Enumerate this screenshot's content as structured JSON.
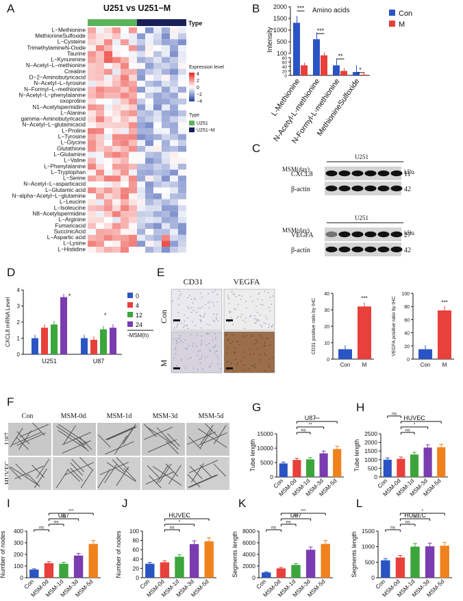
{
  "panels": {
    "A": "A",
    "B": "B",
    "C": "C",
    "D": "D",
    "E": "E",
    "F": "F",
    "G": "G",
    "H": "H",
    "I": "I",
    "J": "J",
    "K": "K",
    "L": "L"
  },
  "heatmap": {
    "title": "U251 vs U251−M",
    "type_label": "Type",
    "rows": [
      "L−Methionine",
      "MethionineSulfoxide",
      "L−Cysteine",
      "TrimethylamineN-Oxide",
      "Taurine",
      "L−Kynurenine",
      "N−Acetyl−L−methionine",
      "Creatine",
      "D−2−Aminobutyricacid",
      "N−Acetyl−L−tyrosine",
      "N−Formyl−L−methionine",
      "N−Acetyl−L−phenylalanine",
      "oxoproline",
      "N1−Acetylspermidine",
      "L−Alanine",
      "gamma−Aminobutyricacid",
      "N−Acetyl−L−glutamicacid",
      "L−Proline",
      "L−Tyrosine",
      "L−Glycine",
      "Glutathione",
      "L−Glutamine",
      "L−Valine",
      "L−Phenylalanine",
      "L−Tryptophan",
      "L−Serine",
      "N−Acetyl−L−asparticacid",
      "L−Glutamic acid",
      "N−alpha−Acetyl−L−glutamine",
      "L−Leucine",
      "L−Isoleucine",
      "N8−Acetylspermidine",
      "L−Arginine",
      "Fumaricacid",
      "SuccinicAcid",
      "L−Aspartic acid",
      "L−Lysine",
      "L−Histidine"
    ],
    "legend_expr_title": "Expression level",
    "legend_expr_ticks": [
      "4",
      "2",
      "0",
      "−2",
      "−4"
    ],
    "legend_type_title": "Type",
    "legend_type_items": [
      "U251",
      "U251−M"
    ],
    "colors": {
      "high": "#e8241c",
      "mid": "#ffffff",
      "low": "#1f3fa0",
      "u251": "#5bb35b",
      "u251m": "#1a1f5a"
    }
  },
  "panelB": {
    "title": "Amino acids",
    "ylabel": "Intensity",
    "y_ticks_upper": [
      "2000",
      "1500",
      "1000",
      "500",
      "100"
    ],
    "y_ticks_lower": [
      "80",
      "60",
      "40",
      "20",
      "0"
    ],
    "categories": [
      "L-Methionine",
      "N-Acetyl-L-methionine",
      "N-Formyl-L-methionine",
      "MethionineSulfoxide"
    ],
    "legend": [
      "Con",
      "M"
    ],
    "sig": [
      "***",
      "***",
      "**",
      "*"
    ],
    "colors": {
      "con": "#2a54c4",
      "m": "#e8403a"
    }
  },
  "panelC": {
    "cell": "U251",
    "msm_label": "MSM(day)",
    "days": [
      "0",
      "1",
      "2",
      "3",
      "4",
      "5"
    ],
    "kda": "kDa",
    "blot1": [
      {
        "name": "CXCL8",
        "size": "11"
      },
      {
        "name": "β-actin",
        "size": "42"
      }
    ],
    "blot2": [
      {
        "name": "VEGFA",
        "size": "27"
      },
      {
        "name": "β-actin",
        "size": "42"
      }
    ]
  },
  "panelD": {
    "ylabel": "CXCL8 mRNA Level",
    "y_ticks": [
      "4",
      "3",
      "2",
      "1",
      "0"
    ],
    "groups": [
      "U251",
      "U87"
    ],
    "legend": [
      "0",
      "4",
      "12",
      "24"
    ],
    "legend_unit": "-MSM(h)",
    "colors": [
      "#2a54c4",
      "#e8403a",
      "#3ca63c",
      "#7a3cb0"
    ]
  },
  "panelE": {
    "col_labels": [
      "CD31",
      "VEGFA"
    ],
    "row_labels": [
      "Con",
      "M"
    ],
    "chart1": {
      "ylabel": "CD31 positive ratio by IHC",
      "y_ticks": [
        "40",
        "30",
        "20",
        "10",
        "0"
      ],
      "categories": [
        "Con",
        "M"
      ],
      "sig": "***"
    },
    "chart2": {
      "ylabel": "VEGFA positive ratio by IHC",
      "y_ticks": [
        "100",
        "80",
        "60",
        "40",
        "20",
        "0"
      ],
      "categories": [
        "Con",
        "M"
      ],
      "sig": "***"
    }
  },
  "panelF": {
    "col_labels": [
      "Con",
      "MSM-0d",
      "MSM-1d",
      "MSM-3d",
      "MSM-5d"
    ],
    "row_labels": [
      "U87",
      "HUVEC"
    ]
  },
  "bar_categories": [
    "Con",
    "MSM-0d",
    "MSM-1d",
    "MSM-3d",
    "MSM-5d"
  ],
  "bar_colors": [
    "#2a54c4",
    "#e8403a",
    "#3ca63c",
    "#7a3cb0",
    "#f0821e"
  ],
  "chart_data": [
    {
      "panel": "B",
      "type": "bar",
      "title": "Amino acids",
      "ylabel": "Intensity",
      "categories": [
        "L-Methionine",
        "N-Acetyl-L-methionine",
        "N-Formyl-L-methionine",
        "MethionineSulfoxide"
      ],
      "series": [
        {
          "name": "Con",
          "values": [
            1350,
            680,
            45,
            15
          ]
        },
        {
          "name": "M",
          "values": [
            45,
            90,
            20,
            3
          ]
        }
      ]
    },
    {
      "panel": "D",
      "type": "bar",
      "ylabel": "CXCL8 mRNA Level",
      "categories": [
        "U251",
        "U87"
      ],
      "ylim": [
        0,
        4
      ],
      "series": [
        {
          "name": "0",
          "values": [
            1.0,
            1.0
          ]
        },
        {
          "name": "4",
          "values": [
            1.65,
            0.9
          ]
        },
        {
          "name": "12",
          "values": [
            1.85,
            1.55
          ]
        },
        {
          "name": "24",
          "values": [
            3.55,
            1.65
          ]
        }
      ]
    },
    {
      "panel": "E1",
      "type": "bar",
      "ylabel": "CD31 positive ratio by IHC",
      "categories": [
        "Con",
        "M"
      ],
      "values": [
        6,
        32
      ],
      "ylim": [
        0,
        40
      ]
    },
    {
      "panel": "E2",
      "type": "bar",
      "ylabel": "VEGFA positive ratio by IHC",
      "categories": [
        "Con",
        "M"
      ],
      "values": [
        15,
        74
      ],
      "ylim": [
        0,
        100
      ]
    },
    {
      "panel": "G",
      "type": "bar",
      "title": "U87",
      "ylabel": "Tube length",
      "categories": [
        "Con",
        "MSM-0d",
        "MSM-1d",
        "MSM-3d",
        "MSM-5d"
      ],
      "values": [
        4700,
        5900,
        6100,
        8200,
        9700
      ],
      "ylim": [
        0,
        15000
      ],
      "y_ticks": [
        "15000",
        "10000",
        "5000",
        "0"
      ],
      "sig": [
        {
          "from": 1,
          "to": 2,
          "t": "ns"
        },
        {
          "from": 1,
          "to": 3,
          "t": "**"
        },
        {
          "from": 1,
          "to": 4,
          "t": "***"
        }
      ]
    },
    {
      "panel": "H",
      "type": "bar",
      "title": "HUVEC",
      "ylabel": "Tube length",
      "categories": [
        "Con",
        "MSM-0d",
        "MSM-1d",
        "MSM-3d",
        "MSM-5d"
      ],
      "values": [
        1000,
        1050,
        1300,
        1700,
        1720
      ],
      "ylim": [
        0,
        2500
      ],
      "y_ticks": [
        "2500",
        "2000",
        "1500",
        "1000",
        "500",
        "0"
      ],
      "sig": [
        {
          "from": 1,
          "to": 2,
          "t": "ns"
        },
        {
          "from": 1,
          "to": 3,
          "t": "*"
        },
        {
          "from": 1,
          "to": 4,
          "t": "*"
        },
        {
          "from": 0,
          "to": 1,
          "t": "ns"
        }
      ]
    },
    {
      "panel": "I",
      "type": "bar",
      "title": "U87",
      "ylabel": "Number of nodes",
      "categories": [
        "Con",
        "MSM-0d",
        "MSM-1d",
        "MSM-3d",
        "MSM-5d"
      ],
      "values": [
        70,
        125,
        120,
        190,
        290
      ],
      "ylim": [
        0,
        400
      ],
      "y_ticks": [
        "400",
        "300",
        "200",
        "100",
        "0"
      ],
      "sig": [
        {
          "from": 0,
          "to": 1,
          "t": "ns"
        },
        {
          "from": 1,
          "to": 2,
          "t": "ns"
        },
        {
          "from": 1,
          "to": 3,
          "t": "ns"
        },
        {
          "from": 1,
          "to": 4,
          "t": "***"
        }
      ]
    },
    {
      "panel": "J",
      "type": "bar",
      "title": "HUVEC",
      "ylabel": "Number of nodes",
      "categories": [
        "Con",
        "MSM-0d",
        "MSM-1d",
        "MSM-3d",
        "MSM-5d"
      ],
      "values": [
        30,
        33,
        45,
        72,
        78
      ],
      "ylim": [
        0,
        100
      ],
      "y_ticks": [
        "100",
        "80",
        "60",
        "40",
        "20",
        "0"
      ],
      "sig": [
        {
          "from": 1,
          "to": 2,
          "t": "ns"
        },
        {
          "from": 1,
          "to": 3,
          "t": "*"
        },
        {
          "from": 1,
          "to": 4,
          "t": "*"
        }
      ]
    },
    {
      "panel": "K",
      "type": "bar",
      "title": "U87",
      "ylabel": "Segments length",
      "categories": [
        "Con",
        "MSM-0d",
        "MSM-1d",
        "MSM-3d",
        "MSM-5d"
      ],
      "values": [
        900,
        1600,
        2200,
        4800,
        5800
      ],
      "ylim": [
        0,
        8000
      ],
      "y_ticks": [
        "8000",
        "6000",
        "4000",
        "2000",
        "0"
      ],
      "sig": [
        {
          "from": 0,
          "to": 1,
          "t": "ns"
        },
        {
          "from": 1,
          "to": 2,
          "t": "ns"
        },
        {
          "from": 1,
          "to": 3,
          "t": "***"
        },
        {
          "from": 1,
          "to": 4,
          "t": "***"
        }
      ]
    },
    {
      "panel": "L",
      "type": "bar",
      "title": "HUVEC",
      "ylabel": "Segments length",
      "categories": [
        "Con",
        "MSM-0d",
        "MSM-1d",
        "MSM-3d",
        "MSM-5d"
      ],
      "values": [
        560,
        650,
        1000,
        1010,
        1030
      ],
      "ylim": [
        0,
        1500
      ],
      "y_ticks": [
        "1500",
        "1000",
        "500",
        "0"
      ],
      "sig": [
        {
          "from": 0,
          "to": 1,
          "t": "ns"
        },
        {
          "from": 1,
          "to": 2,
          "t": "ns"
        },
        {
          "from": 1,
          "to": 3,
          "t": "ns"
        },
        {
          "from": 1,
          "to": 4,
          "t": "*"
        }
      ]
    }
  ]
}
